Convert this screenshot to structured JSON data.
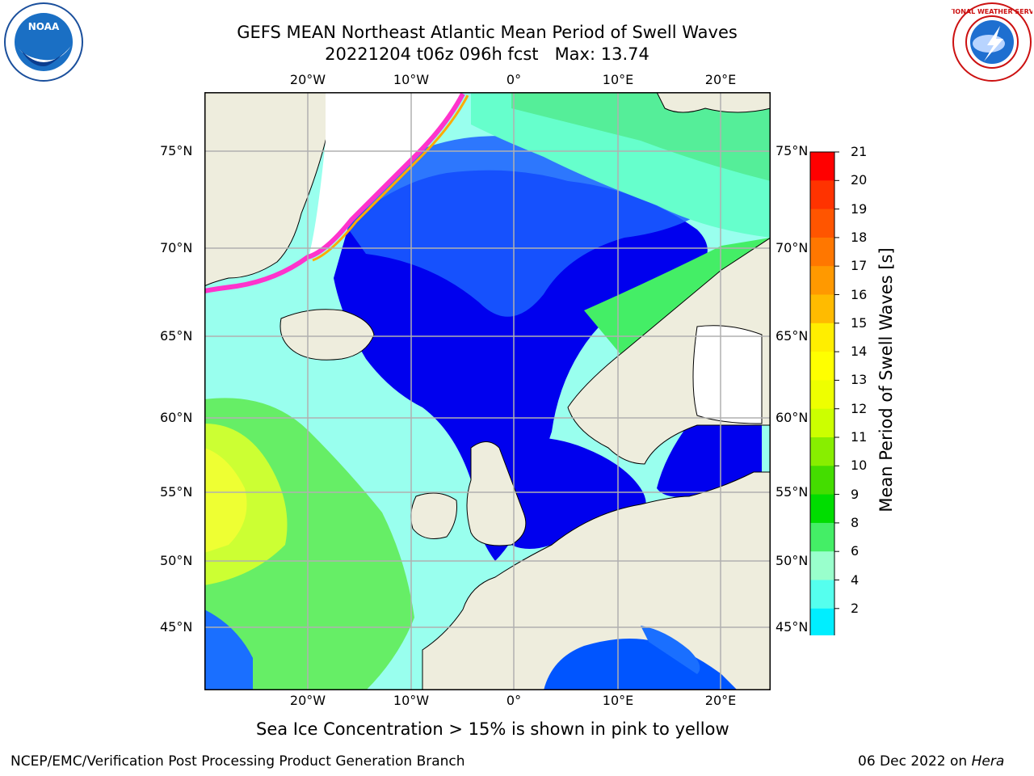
{
  "title": {
    "line1": "GEFS MEAN Northeast Atlantic Mean Period of Swell Waves",
    "line2": "20221204 t06z 096h fcst   Max: 13.74"
  },
  "logos": {
    "left": {
      "icon": "noaa-logo",
      "text": "NOAA"
    },
    "right": {
      "icon": "national-weather-service-logo",
      "text": "NATIONAL WEATHER SERVICE"
    }
  },
  "map": {
    "lon_labels": [
      "20°W",
      "10°W",
      "0°",
      "10°E",
      "20°E"
    ],
    "lat_labels": [
      "75°N",
      "70°N",
      "65°N",
      "60°N",
      "55°N",
      "50°N",
      "45°N"
    ],
    "colors": {
      "land": "#eeeddd",
      "ice_pink": "#ff33cc",
      "ice_yellow": "#ffff00",
      "grid": "#b0b0b0"
    }
  },
  "colorbar": {
    "title": "Mean Period of Swell Waves [s]",
    "ticks": [
      "21",
      "20",
      "19",
      "18",
      "17",
      "16",
      "15",
      "14",
      "13",
      "12",
      "11",
      "10",
      "9",
      "8",
      "6",
      "4",
      "2"
    ],
    "colors": [
      "#ff0000",
      "#ff3300",
      "#ff5500",
      "#ff7700",
      "#ff9900",
      "#ffbb00",
      "#ffee00",
      "#ffff00",
      "#eeff00",
      "#ccff00",
      "#88ee00",
      "#44dd00",
      "#00dd00",
      "#44ee66",
      "#99ffcc",
      "#55ffee",
      "#00eeff",
      "#0088ff"
    ]
  },
  "caption": "Sea Ice Concentration > 15% is shown in pink to yellow",
  "footer": {
    "left": "NCEP/EMC/Verification Post Processing Product Generation Branch",
    "right_date": "06 Dec 2022 on ",
    "right_machine": "Hera"
  }
}
